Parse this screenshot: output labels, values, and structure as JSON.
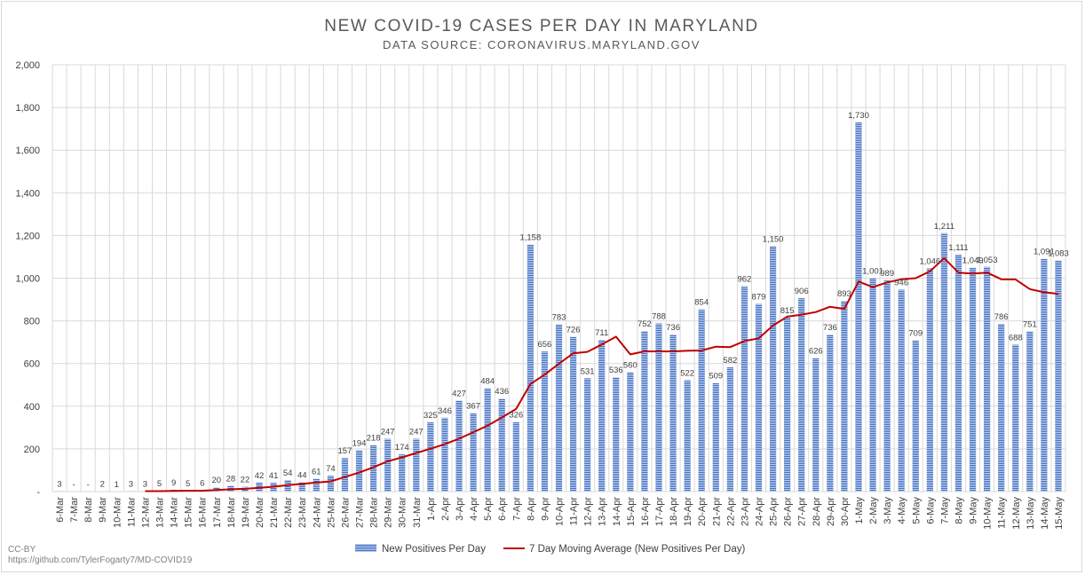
{
  "chart_data": {
    "type": "bar",
    "title": "NEW COVID-19 CASES PER DAY IN MARYLAND",
    "subtitle": "DATA SOURCE: CORONAVIRUS.MARYLAND.GOV",
    "ylim": [
      0,
      2000
    ],
    "yticks": [
      0,
      200,
      400,
      600,
      800,
      1000,
      1200,
      1400,
      1600,
      1800,
      2000
    ],
    "ytick_labels": [
      "-",
      "200",
      "400",
      "600",
      "800",
      "1,000",
      "1,200",
      "1,400",
      "1,600",
      "1,800",
      "2,000"
    ],
    "grid": true,
    "legend_position": "bottom",
    "categories": [
      "6-Mar",
      "7-Mar",
      "8-Mar",
      "9-Mar",
      "10-Mar",
      "11-Mar",
      "12-Mar",
      "13-Mar",
      "14-Mar",
      "15-Mar",
      "16-Mar",
      "17-Mar",
      "18-Mar",
      "19-Mar",
      "20-Mar",
      "21-Mar",
      "22-Mar",
      "23-Mar",
      "24-Mar",
      "25-Mar",
      "26-Mar",
      "27-Mar",
      "28-Mar",
      "29-Mar",
      "30-Mar",
      "31-Mar",
      "1-Apr",
      "2-Apr",
      "3-Apr",
      "4-Apr",
      "5-Apr",
      "6-Apr",
      "7-Apr",
      "8-Apr",
      "9-Apr",
      "10-Apr",
      "11-Apr",
      "12-Apr",
      "13-Apr",
      "14-Apr",
      "15-Apr",
      "16-Apr",
      "17-Apr",
      "18-Apr",
      "19-Apr",
      "20-Apr",
      "21-Apr",
      "22-Apr",
      "23-Apr",
      "24-Apr",
      "25-Apr",
      "26-Apr",
      "27-Apr",
      "28-Apr",
      "29-Apr",
      "30-Apr",
      "1-May",
      "2-May",
      "3-May",
      "4-May",
      "5-May",
      "6-May",
      "7-May",
      "8-May",
      "9-May",
      "10-May",
      "11-May",
      "12-May",
      "13-May",
      "14-May",
      "15-May"
    ],
    "series": [
      {
        "name": "New Positives Per Day",
        "type": "bar",
        "color": "#4472c4",
        "values": [
          3,
          0,
          0,
          2,
          1,
          3,
          3,
          5,
          9,
          5,
          6,
          20,
          28,
          22,
          42,
          41,
          54,
          44,
          61,
          74,
          157,
          194,
          218,
          247,
          174,
          247,
          325,
          346,
          427,
          367,
          484,
          436,
          326,
          1158,
          656,
          783,
          726,
          531,
          711,
          536,
          560,
          752,
          788,
          736,
          522,
          854,
          509,
          582,
          962,
          879,
          1150,
          815,
          906,
          626,
          736,
          893,
          1730,
          1001,
          989,
          946,
          709,
          1046,
          1211,
          1111,
          1049,
          1053,
          786,
          688,
          751,
          1091,
          1083
        ],
        "labels": [
          "3",
          "-",
          "-",
          "2",
          "1",
          "3",
          "3",
          "5",
          "9",
          "5",
          "6",
          "20",
          "28",
          "22",
          "42",
          "41",
          "54",
          "44",
          "61",
          "74",
          "157",
          "194",
          "218",
          "247",
          "174",
          "247",
          "325",
          "346",
          "427",
          "367",
          "484",
          "436",
          "326",
          "1,158",
          "656",
          "783",
          "726",
          "531",
          "711",
          "536",
          "560",
          "752",
          "788",
          "736",
          "522",
          "854",
          "509",
          "582",
          "962",
          "879",
          "1,150",
          "815",
          "906",
          "626",
          "736",
          "893",
          "1,730",
          "1,001",
          "989",
          "946",
          "709",
          "1,046",
          "1,211",
          "1,111",
          "1,049",
          "1,053",
          "786",
          "688",
          "751",
          "1,091",
          "1,083"
        ]
      },
      {
        "name": "7 Day Moving Average (New Positives Per Day)",
        "type": "line",
        "color": "#c00000",
        "values": [
          null,
          null,
          null,
          null,
          null,
          null,
          2,
          2,
          3,
          4,
          4,
          7,
          11,
          13,
          18,
          23,
          30,
          36,
          42,
          48,
          68,
          89,
          114,
          142,
          160,
          181,
          201,
          222,
          248,
          278,
          309,
          347,
          387,
          504,
          548,
          599,
          648,
          655,
          689,
          726,
          643,
          657,
          657,
          657,
          660,
          661,
          679,
          677,
          705,
          718,
          778,
          820,
          829,
          841,
          866,
          856,
          984,
          958,
          980,
          995,
          1000,
          1032,
          1094,
          1026,
          1021,
          1026,
          995,
          994,
          949,
          934,
          927
        ]
      }
    ]
  },
  "credit": {
    "license": "CC-BY",
    "url": "https://github.com/TylerFogarty7/MD-COVID19"
  }
}
